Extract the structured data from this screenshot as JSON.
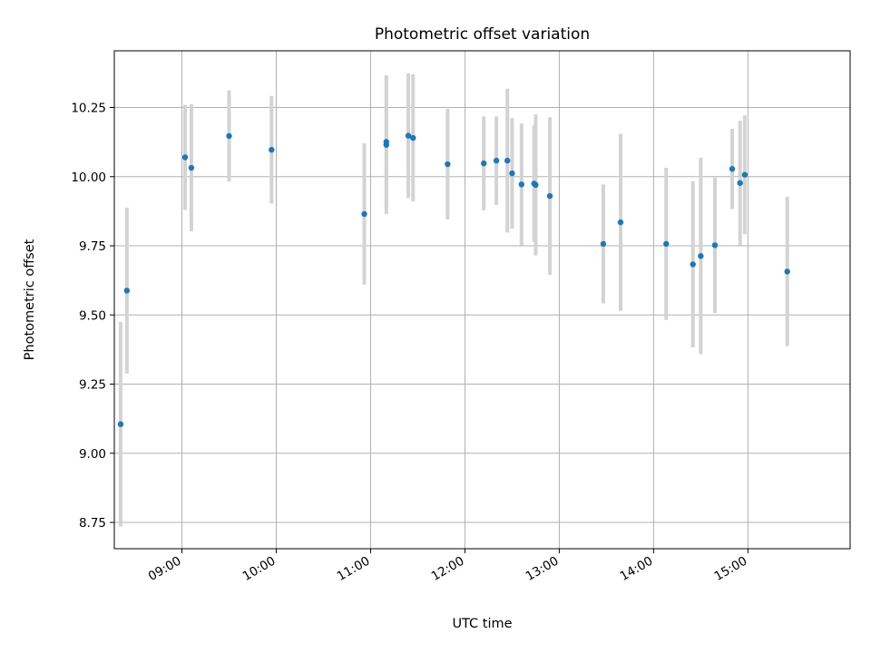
{
  "chart_data": {
    "type": "scatter",
    "title": "Photometric offset variation",
    "xlabel": "UTC time",
    "ylabel": "Photometric offset",
    "xlim": [
      "08:17",
      "16:05"
    ],
    "ylim": [
      8.655,
      10.455
    ],
    "x_ticks": [
      "09:00",
      "10:00",
      "11:00",
      "12:00",
      "13:00",
      "14:00",
      "15:00"
    ],
    "y_ticks": [
      "8.75",
      "9.00",
      "9.25",
      "9.50",
      "9.75",
      "10.00",
      "10.25"
    ],
    "grid": true,
    "colors": {
      "marker": "#1f77b4",
      "errorbar": "#d3d3d3",
      "grid": "#b0b0b0"
    },
    "series": [
      {
        "points": [
          {
            "t": "08:21",
            "y": 9.105,
            "err": 0.37
          },
          {
            "t": "08:25",
            "y": 9.588,
            "err": 0.3
          },
          {
            "t": "09:02",
            "y": 10.07,
            "err": 0.19
          },
          {
            "t": "09:06",
            "y": 10.032,
            "err": 0.23
          },
          {
            "t": "09:30",
            "y": 10.147,
            "err": 0.165
          },
          {
            "t": "09:57",
            "y": 10.097,
            "err": 0.195
          },
          {
            "t": "10:56",
            "y": 9.865,
            "err": 0.255
          },
          {
            "t": "11:10",
            "y": 10.115,
            "err": 0.25
          },
          {
            "t": "11:10",
            "y": 10.126,
            "err": 0.24
          },
          {
            "t": "11:24",
            "y": 10.148,
            "err": 0.225
          },
          {
            "t": "11:27",
            "y": 10.14,
            "err": 0.23
          },
          {
            "t": "11:49",
            "y": 10.045,
            "err": 0.2
          },
          {
            "t": "12:12",
            "y": 10.048,
            "err": 0.17
          },
          {
            "t": "12:20",
            "y": 10.058,
            "err": 0.16
          },
          {
            "t": "12:27",
            "y": 10.058,
            "err": 0.26
          },
          {
            "t": "12:30",
            "y": 10.012,
            "err": 0.2
          },
          {
            "t": "12:36",
            "y": 9.972,
            "err": 0.22
          },
          {
            "t": "12:44",
            "y": 9.975,
            "err": 0.21
          },
          {
            "t": "12:45",
            "y": 9.97,
            "err": 0.255
          },
          {
            "t": "12:54",
            "y": 9.93,
            "err": 0.285
          },
          {
            "t": "13:28",
            "y": 9.757,
            "err": 0.215
          },
          {
            "t": "13:39",
            "y": 9.835,
            "err": 0.32
          },
          {
            "t": "14:08",
            "y": 9.757,
            "err": 0.275
          },
          {
            "t": "14:25",
            "y": 9.683,
            "err": 0.3
          },
          {
            "t": "14:30",
            "y": 9.713,
            "err": 0.355
          },
          {
            "t": "14:39",
            "y": 9.752,
            "err": 0.245
          },
          {
            "t": "14:50",
            "y": 10.028,
            "err": 0.145
          },
          {
            "t": "14:55",
            "y": 9.977,
            "err": 0.225
          },
          {
            "t": "14:58",
            "y": 10.007,
            "err": 0.215
          },
          {
            "t": "15:25",
            "y": 9.657,
            "err": 0.27
          }
        ]
      }
    ]
  }
}
